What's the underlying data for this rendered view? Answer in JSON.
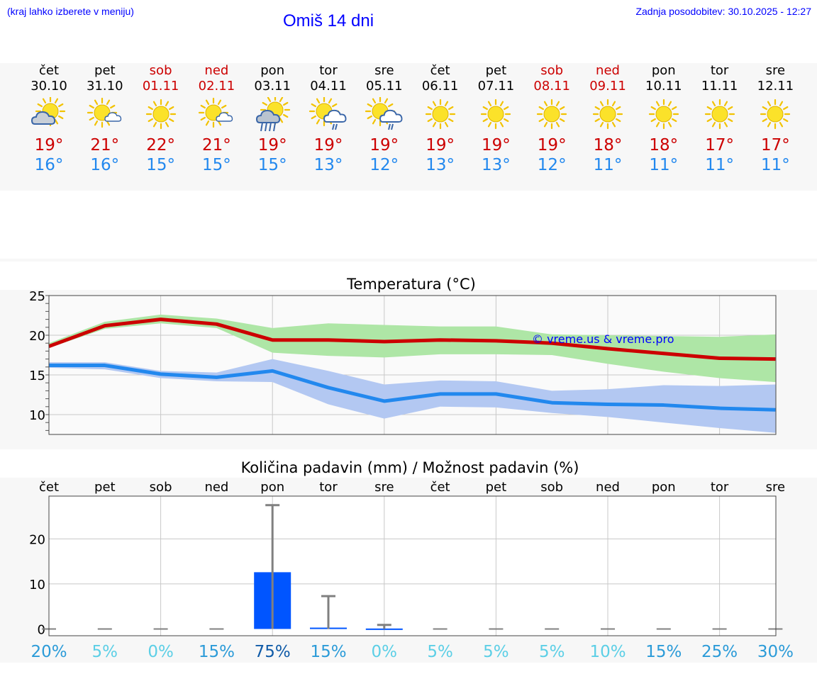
{
  "header": {
    "hint": "(kraj lahko izberete v meniju)",
    "title": "Omiš 14 dni",
    "updated": "Zadnja posodobitev: 30.10.2025 - 12:27"
  },
  "colors": {
    "max": "#cc0000",
    "min": "#2288ee",
    "band_max": "#aee6a6",
    "band_min": "#b3c8f2",
    "precip": "#0055ff"
  },
  "days": [
    {
      "name": "čet",
      "date": "30.10",
      "weekend": false,
      "icon": "sun-cloud-icon",
      "tmax": "19°",
      "tmin": "16°"
    },
    {
      "name": "pet",
      "date": "31.10",
      "weekend": false,
      "icon": "sun-small-cloud-icon",
      "tmax": "21°",
      "tmin": "16°"
    },
    {
      "name": "sob",
      "date": "01.11",
      "weekend": true,
      "icon": "sun-icon",
      "tmax": "22°",
      "tmin": "15°"
    },
    {
      "name": "ned",
      "date": "02.11",
      "weekend": true,
      "icon": "sun-small-cloud-icon",
      "tmax": "21°",
      "tmin": "15°"
    },
    {
      "name": "pon",
      "date": "03.11",
      "weekend": false,
      "icon": "sun-cloud-heavy-rain-icon",
      "tmax": "19°",
      "tmin": "15°"
    },
    {
      "name": "tor",
      "date": "04.11",
      "weekend": false,
      "icon": "sun-cloud-rain-icon",
      "tmax": "19°",
      "tmin": "13°"
    },
    {
      "name": "sre",
      "date": "05.11",
      "weekend": false,
      "icon": "sun-cloud-rain-icon",
      "tmax": "19°",
      "tmin": "12°"
    },
    {
      "name": "čet",
      "date": "06.11",
      "weekend": false,
      "icon": "sun-icon",
      "tmax": "19°",
      "tmin": "13°"
    },
    {
      "name": "pet",
      "date": "07.11",
      "weekend": false,
      "icon": "sun-icon",
      "tmax": "19°",
      "tmin": "13°"
    },
    {
      "name": "sob",
      "date": "08.11",
      "weekend": true,
      "icon": "sun-icon",
      "tmax": "19°",
      "tmin": "12°"
    },
    {
      "name": "ned",
      "date": "09.11",
      "weekend": true,
      "icon": "sun-icon",
      "tmax": "18°",
      "tmin": "11°"
    },
    {
      "name": "pon",
      "date": "10.11",
      "weekend": false,
      "icon": "sun-icon",
      "tmax": "18°",
      "tmin": "11°"
    },
    {
      "name": "tor",
      "date": "11.11",
      "weekend": false,
      "icon": "sun-icon",
      "tmax": "17°",
      "tmin": "11°"
    },
    {
      "name": "sre",
      "date": "12.11",
      "weekend": false,
      "icon": "sun-icon",
      "tmax": "17°",
      "tmin": "11°"
    }
  ],
  "chart_data": [
    {
      "type": "line",
      "title": "Temperatura (°C)",
      "watermark": "© vreme.us & vreme.pro",
      "ylim": [
        7.5,
        25
      ],
      "yticks": [
        10,
        15,
        20,
        25
      ],
      "x": [
        0,
        1,
        2,
        3,
        4,
        5,
        6,
        7,
        8,
        9,
        10,
        11,
        12,
        13
      ],
      "series": [
        {
          "name": "max",
          "values": [
            18.6,
            21.2,
            22.0,
            21.4,
            19.4,
            19.4,
            19.2,
            19.4,
            19.3,
            19.0,
            18.3,
            17.7,
            17.1,
            17.0
          ],
          "band_low": [
            18.4,
            20.8,
            21.5,
            20.9,
            17.8,
            17.4,
            17.2,
            17.6,
            17.6,
            17.5,
            16.4,
            15.4,
            14.6,
            14.1
          ],
          "band_high": [
            19.0,
            21.7,
            22.6,
            22.1,
            20.9,
            21.5,
            21.3,
            21.1,
            21.1,
            20.1,
            20.0,
            19.9,
            19.8,
            20.1
          ]
        },
        {
          "name": "min",
          "values": [
            16.2,
            16.2,
            15.1,
            14.7,
            15.5,
            13.4,
            11.7,
            12.6,
            12.6,
            11.5,
            11.3,
            11.2,
            10.8,
            10.6
          ],
          "band_low": [
            15.9,
            15.7,
            14.6,
            14.2,
            14.1,
            11.3,
            9.5,
            11.0,
            10.9,
            10.2,
            9.7,
            9.0,
            8.3,
            7.7
          ],
          "band_high": [
            16.6,
            16.6,
            15.5,
            15.3,
            17.0,
            15.5,
            13.8,
            14.3,
            14.2,
            13.0,
            13.2,
            13.7,
            13.6,
            13.8
          ]
        }
      ]
    },
    {
      "type": "bar",
      "title": "Količina padavin (mm) / Možnost padavin (%)",
      "categories": [
        "čet",
        "pet",
        "sob",
        "ned",
        "pon",
        "tor",
        "sre",
        "čet",
        "pet",
        "sob",
        "ned",
        "pon",
        "tor",
        "sre"
      ],
      "ylim": [
        -1.5,
        29.5
      ],
      "yticks": [
        0,
        10,
        20
      ],
      "values": [
        0,
        0,
        0,
        0,
        12.6,
        0.3,
        0.1,
        0,
        0,
        0,
        0,
        0,
        0,
        0
      ],
      "error_high": [
        0,
        0,
        0,
        0,
        27.5,
        7.3,
        0.9,
        0,
        0,
        0,
        0,
        0,
        0,
        0
      ],
      "probability": [
        "20%",
        "5%",
        "0%",
        "15%",
        "75%",
        "15%",
        "0%",
        "5%",
        "5%",
        "5%",
        "10%",
        "15%",
        "25%",
        "30%"
      ],
      "probability_colors": [
        "#2b9bd8",
        "#5ccfe6",
        "#5ccfe6",
        "#2b9bd8",
        "#105ba8",
        "#2b9bd8",
        "#5ccfe6",
        "#5ccfe6",
        "#5ccfe6",
        "#5ccfe6",
        "#5ccfe6",
        "#2b9bd8",
        "#2b9bd8",
        "#2b9bd8"
      ]
    }
  ]
}
